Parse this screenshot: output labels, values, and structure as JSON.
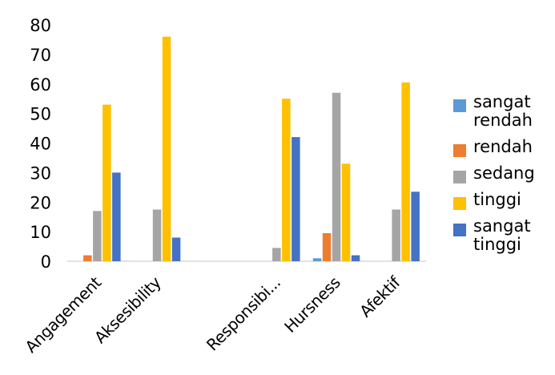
{
  "chart_data": {
    "type": "bar",
    "categories": [
      "Angagement",
      "Aksesibility",
      "",
      "Responsibi...",
      "Hursness",
      "Afektif"
    ],
    "series": [
      {
        "name": "sangat rendah",
        "color": "#5b9bd5",
        "values": [
          0,
          0,
          0,
          0,
          1,
          0
        ]
      },
      {
        "name": "rendah",
        "color": "#ed7d31",
        "values": [
          2,
          0,
          0,
          0,
          9.5,
          0
        ]
      },
      {
        "name": "sedang",
        "color": "#a5a5a5",
        "values": [
          17,
          17.5,
          0,
          4.5,
          57,
          17.5
        ]
      },
      {
        "name": "tinggi",
        "color": "#ffc000",
        "values": [
          53,
          76,
          0,
          55,
          33,
          60.5
        ]
      },
      {
        "name": "sangat tinggi",
        "color": "#4472c4",
        "values": [
          30,
          8,
          0,
          42,
          2,
          23.5
        ]
      }
    ],
    "yticks": [
      "0",
      "10",
      "20",
      "30",
      "40",
      "50",
      "60",
      "70",
      "80"
    ],
    "ylim": [
      0,
      80
    ],
    "grid": false,
    "legend_position": "right"
  },
  "legend": [
    {
      "label_lines": [
        "sangat",
        "rendah"
      ],
      "color": "#5b9bd5"
    },
    {
      "label_lines": [
        "rendah"
      ],
      "color": "#ed7d31"
    },
    {
      "label_lines": [
        "sedang"
      ],
      "color": "#a5a5a5"
    },
    {
      "label_lines": [
        "tinggi"
      ],
      "color": "#ffc000"
    },
    {
      "label_lines": [
        "sangat",
        "tinggi"
      ],
      "color": "#4472c4"
    }
  ]
}
